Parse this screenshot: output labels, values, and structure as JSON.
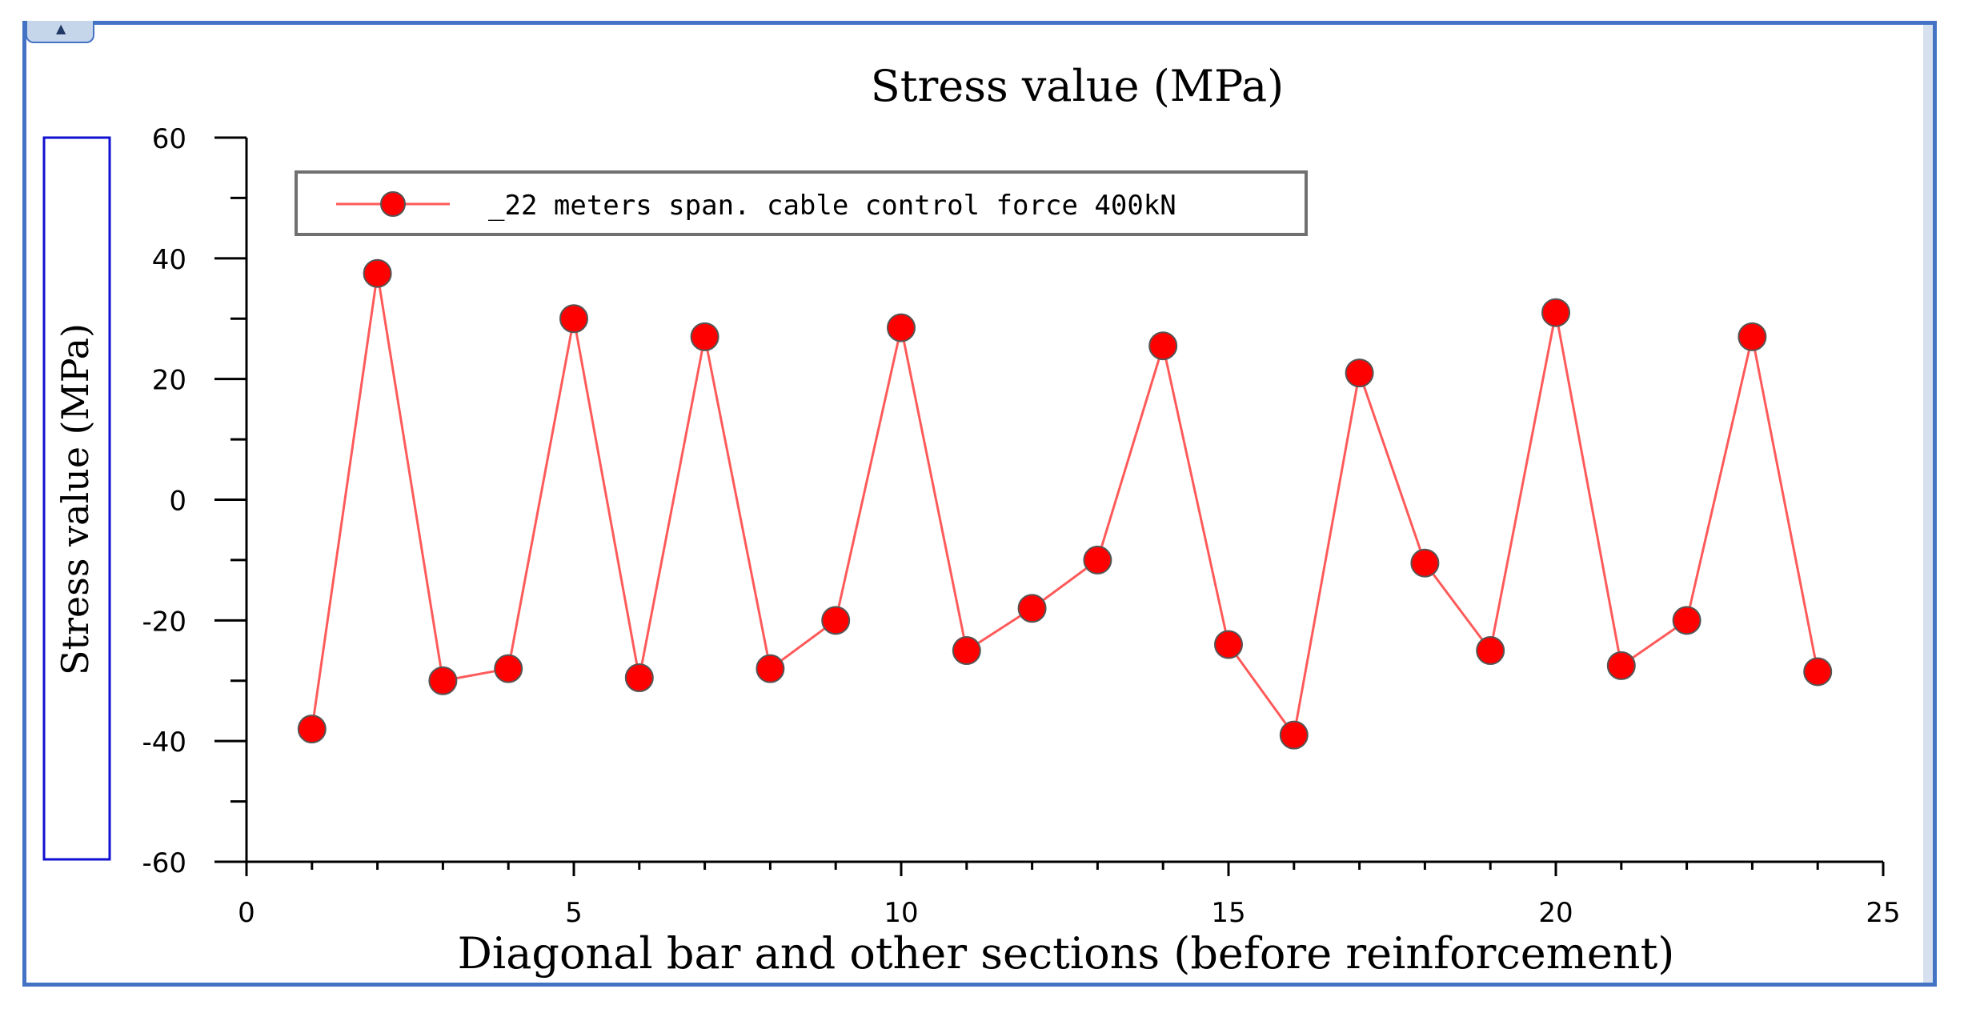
{
  "chart_data": {
    "type": "line",
    "title": "Stress value (MPa)",
    "xlabel": "Diagonal bar and other sections (before reinforcement)",
    "ylabel": "Stress value (MPa)",
    "xlim": [
      0,
      25
    ],
    "ylim": [
      -60,
      60
    ],
    "xticks": [
      0,
      5,
      10,
      15,
      20,
      25
    ],
    "yticks": [
      -60,
      -40,
      -20,
      0,
      20,
      40,
      60
    ],
    "x_minor_step": 1,
    "y_minor_step": 10,
    "grid": false,
    "legend_position": "top-left",
    "series": [
      {
        "name": "_22 meters span. cable control force 400kN",
        "color": "#ff0000",
        "line_color": "#ff5a5a",
        "x": [
          1,
          2,
          3,
          4,
          5,
          6,
          7,
          8,
          9,
          10,
          11,
          12,
          13,
          14,
          15,
          16,
          17,
          18,
          19,
          20,
          21,
          22,
          23,
          24
        ],
        "y": [
          -38,
          37.5,
          -30,
          -28,
          30,
          -29.5,
          27,
          -28,
          -20,
          28.5,
          -25,
          -18,
          -10,
          25.5,
          -24,
          -39,
          21,
          -10.5,
          -25,
          31,
          -27.5,
          -20,
          27,
          -28.5
        ]
      }
    ]
  },
  "window": {
    "tab_glyph": "▲",
    "frame_color": "#4472c4"
  }
}
